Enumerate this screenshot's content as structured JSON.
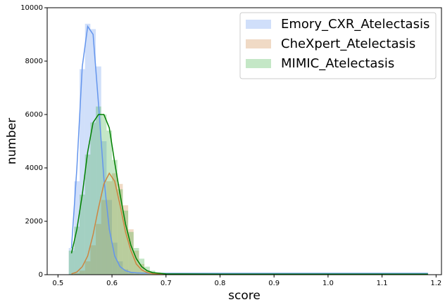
{
  "chart_data": {
    "type": "histogram",
    "xlabel": "score",
    "ylabel": "number",
    "xlim": [
      0.48,
      1.21
    ],
    "ylim": [
      0,
      10000
    ],
    "xticks": [
      0.5,
      0.6,
      0.7,
      0.8,
      0.9,
      {
        "value": 1,
        "label": "1.0"
      },
      1.1,
      1.2
    ],
    "yticks": [
      0,
      2000,
      4000,
      6000,
      8000,
      10000
    ],
    "legend": "upper right",
    "bins": [
      0.52,
      0.53,
      0.54,
      0.55,
      0.56,
      0.57,
      0.58,
      0.59,
      0.6,
      0.61,
      0.62,
      0.63,
      0.64,
      0.65,
      0.66,
      0.67,
      0.68,
      0.69,
      0.7,
      0.71,
      0.72
    ],
    "curve_x": [
      0.525,
      0.535,
      0.545,
      0.555,
      0.565,
      0.575,
      0.585,
      0.595,
      0.605,
      0.615,
      0.625,
      0.635,
      0.645,
      0.655,
      0.665,
      0.675,
      0.7,
      0.8,
      0.9,
      1.0,
      1.1,
      1.185
    ],
    "series": [
      {
        "name": "Emory_CXR_Atelectasis",
        "color": "#6495ed",
        "line_color": "#6495ed",
        "counts": [
          1000,
          3500,
          7700,
          9400,
          9200,
          7800,
          5000,
          2800,
          1200,
          500,
          200,
          80,
          40,
          20,
          10,
          5,
          0,
          0,
          0,
          0
        ],
        "curve": [
          1000,
          4000,
          7800,
          9300,
          9000,
          6400,
          3600,
          1700,
          700,
          300,
          150,
          90,
          70,
          60,
          55,
          50,
          50,
          50,
          50,
          50,
          50,
          50
        ]
      },
      {
        "name": "CheXpert_Atelectasis",
        "color": "#cd853f",
        "line_color": "#cd853f",
        "counts": [
          0,
          50,
          150,
          500,
          1100,
          1900,
          2800,
          3500,
          3800,
          3400,
          2600,
          1700,
          900,
          400,
          150,
          60,
          20,
          5,
          0,
          0
        ],
        "curve": [
          30,
          100,
          300,
          700,
          1500,
          2500,
          3400,
          3800,
          3500,
          2600,
          1600,
          900,
          400,
          180,
          80,
          40,
          20,
          10,
          10,
          10,
          10,
          10
        ]
      },
      {
        "name": "MIMIC_Atelectasis",
        "color": "#3cb043",
        "line_color": "#008000",
        "counts": [
          900,
          1800,
          3000,
          4500,
          5700,
          6300,
          6000,
          5400,
          4300,
          3200,
          2400,
          1600,
          1000,
          600,
          300,
          150,
          80,
          40,
          20,
          10
        ],
        "curve": [
          800,
          1700,
          3000,
          4600,
          5700,
          6000,
          6000,
          5500,
          4200,
          3000,
          1900,
          1100,
          600,
          300,
          150,
          80,
          30,
          20,
          20,
          20,
          20,
          20
        ]
      }
    ]
  }
}
